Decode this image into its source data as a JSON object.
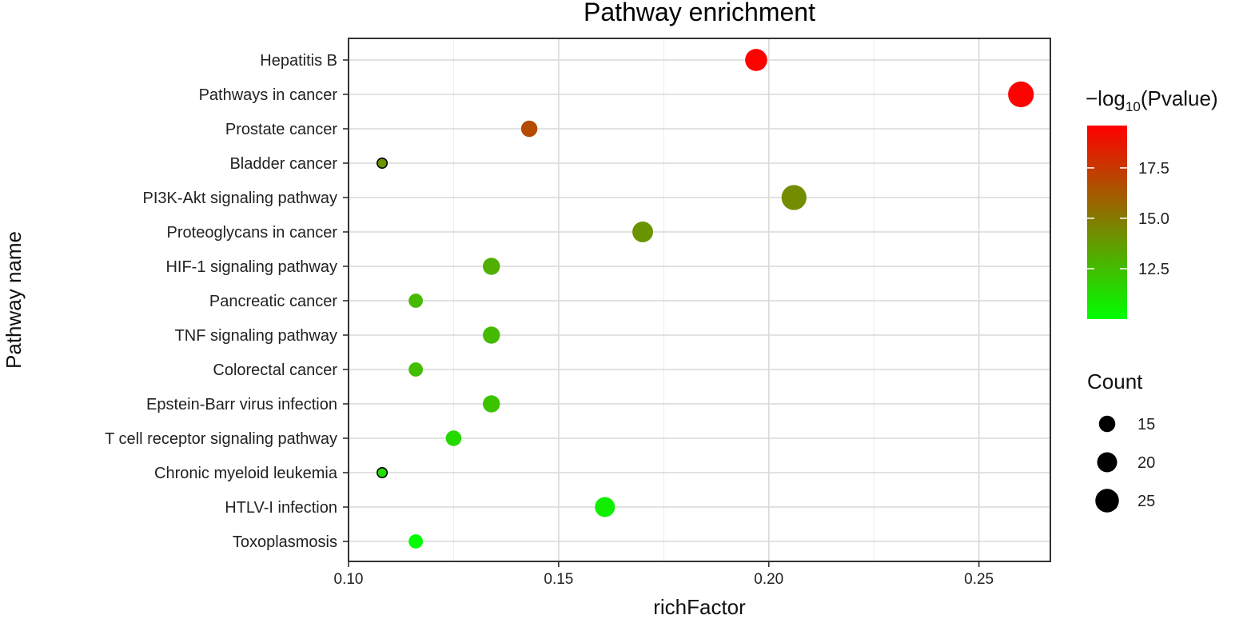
{
  "chart_data": {
    "type": "scatter",
    "title": "Pathway enrichment",
    "xlabel": "richFactor",
    "ylabel": "Pathway name",
    "xlim": [
      0.1,
      0.267
    ],
    "xticks": [
      0.1,
      0.15,
      0.2,
      0.25
    ],
    "xtick_labels": [
      "0.10",
      "0.15",
      "0.20",
      "0.25"
    ],
    "grid": true,
    "categories": [
      "Hepatitis B",
      "Pathways in cancer",
      "Prostate cancer",
      "Bladder cancer",
      "PI3K-Akt signaling pathway",
      "Proteoglycans in cancer",
      "HIF-1 signaling pathway",
      "Pancreatic cancer",
      "TNF signaling pathway",
      "Colorectal cancer",
      "Epstein-Barr virus infection",
      "T cell receptor signaling pathway",
      "Chronic myeloid leukemia",
      "HTLV-I infection",
      "Toxoplasmosis"
    ],
    "points": [
      {
        "pathway": "Hepatitis B",
        "richFactor": 0.197,
        "neg_log10_p": 19.5,
        "count": 23
      },
      {
        "pathway": "Pathways in cancer",
        "richFactor": 0.26,
        "neg_log10_p": 19.5,
        "count": 28
      },
      {
        "pathway": "Prostate cancer",
        "richFactor": 0.143,
        "neg_log10_p": 16.8,
        "count": 15
      },
      {
        "pathway": "Bladder cancer",
        "richFactor": 0.108,
        "neg_log10_p": 14.0,
        "count": 6
      },
      {
        "pathway": "PI3K-Akt signaling pathway",
        "richFactor": 0.206,
        "neg_log10_p": 14.3,
        "count": 27
      },
      {
        "pathway": "Proteoglycans in cancer",
        "richFactor": 0.17,
        "neg_log10_p": 14.0,
        "count": 21
      },
      {
        "pathway": "HIF-1 signaling pathway",
        "richFactor": 0.134,
        "neg_log10_p": 13.0,
        "count": 16
      },
      {
        "pathway": "Pancreatic cancer",
        "richFactor": 0.116,
        "neg_log10_p": 12.6,
        "count": 12
      },
      {
        "pathway": "TNF signaling pathway",
        "richFactor": 0.134,
        "neg_log10_p": 12.6,
        "count": 16
      },
      {
        "pathway": "Colorectal cancer",
        "richFactor": 0.116,
        "neg_log10_p": 12.5,
        "count": 12
      },
      {
        "pathway": "Epstein-Barr virus infection",
        "richFactor": 0.134,
        "neg_log10_p": 12.3,
        "count": 16
      },
      {
        "pathway": "T cell receptor signaling pathway",
        "richFactor": 0.125,
        "neg_log10_p": 11.4,
        "count": 14
      },
      {
        "pathway": "Chronic myeloid leukemia",
        "richFactor": 0.108,
        "neg_log10_p": 11.2,
        "count": 6
      },
      {
        "pathway": "HTLV-I infection",
        "richFactor": 0.161,
        "neg_log10_p": 10.6,
        "count": 20
      },
      {
        "pathway": "Toxoplasmosis",
        "richFactor": 0.116,
        "neg_log10_p": 10.1,
        "count": 12
      }
    ],
    "color_legend": {
      "title_prefix": "−log",
      "title_subscript": "10",
      "title_suffix": "(Pvalue)",
      "range": [
        10.0,
        19.6
      ],
      "ticks": [
        12.5,
        15.0,
        17.5
      ],
      "tick_labels": [
        "12.5",
        "15.0",
        "17.5"
      ],
      "low_color": "#00ff00",
      "high_color": "#ff0000"
    },
    "size_legend": {
      "title": "Count",
      "values": [
        15,
        20,
        25
      ],
      "labels": [
        "15",
        "20",
        "25"
      ],
      "color": "#000000",
      "placement": "right"
    }
  }
}
